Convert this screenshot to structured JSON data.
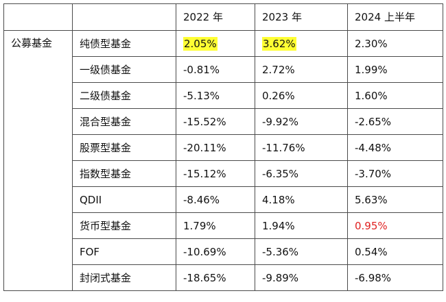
{
  "table": {
    "headers": [
      "",
      "",
      "2022 年",
      "2023 年",
      "2024 上半年"
    ],
    "category": "公募基金",
    "rows": [
      {
        "name": "纯债型基金",
        "y2022": "2.05%",
        "y2023": "3.62%",
        "h2024": "2.30%"
      },
      {
        "name": "一级债基金",
        "y2022": "-0.81%",
        "y2023": "2.72%",
        "h2024": "1.99%"
      },
      {
        "name": "二级债基金",
        "y2022": "-5.13%",
        "y2023": "0.26%",
        "h2024": "1.60%"
      },
      {
        "name": "混合型基金",
        "y2022": "-15.52%",
        "y2023": "-9.92%",
        "h2024": "-2.65%"
      },
      {
        "name": "股票型基金",
        "y2022": "-20.11%",
        "y2023": "-11.76%",
        "h2024": "-4.48%"
      },
      {
        "name": "指数型基金",
        "y2022": "-15.12%",
        "y2023": "-6.35%",
        "h2024": "-3.70%"
      },
      {
        "name": "QDII",
        "y2022": "-8.46%",
        "y2023": "4.18%",
        "h2024": "5.63%"
      },
      {
        "name": "货币型基金",
        "y2022": "1.79%",
        "y2023": "1.94%",
        "h2024": "0.95%"
      },
      {
        "name": "FOF",
        "y2022": "-10.69%",
        "y2023": "-5.36%",
        "h2024": "0.54%"
      },
      {
        "name": "封闭式基金",
        "y2022": "-18.65%",
        "y2023": "-9.89%",
        "h2024": "-6.98%"
      }
    ]
  },
  "colors": {
    "highlight": "#ffff33",
    "red_text": "#e02020",
    "border": "#4a4a4a"
  }
}
